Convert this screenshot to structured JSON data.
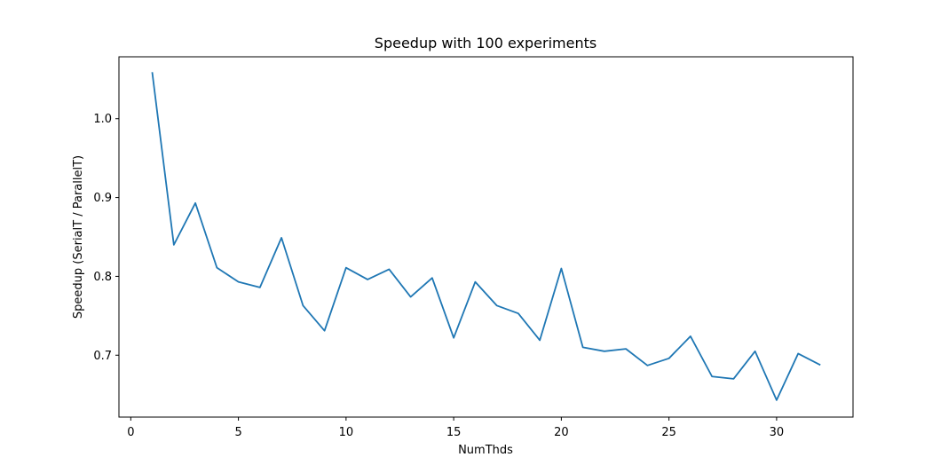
{
  "chart_data": {
    "type": "line",
    "title": "Speedup with 100 experiments",
    "xlabel": "NumThds",
    "ylabel": "Speedup (SerialT / ParallelT)",
    "xlim": [
      -0.55,
      33.55
    ],
    "ylim": [
      0.6215,
      1.0785
    ],
    "xticks": [
      0,
      5,
      10,
      15,
      20,
      25,
      30
    ],
    "yticks": [
      0.7,
      0.8,
      0.9,
      1.0
    ],
    "grid": false,
    "legend": "none",
    "series": [
      {
        "color": "#1f77b4",
        "x": [
          1,
          2,
          3,
          4,
          5,
          6,
          7,
          8,
          9,
          10,
          11,
          12,
          13,
          14,
          15,
          16,
          17,
          18,
          19,
          20,
          21,
          22,
          23,
          24,
          25,
          26,
          27,
          28,
          29,
          30,
          31,
          32
        ],
        "y": [
          1.058,
          0.84,
          0.893,
          0.811,
          0.793,
          0.786,
          0.849,
          0.763,
          0.731,
          0.811,
          0.796,
          0.809,
          0.774,
          0.798,
          0.722,
          0.793,
          0.763,
          0.753,
          0.719,
          0.81,
          0.71,
          0.705,
          0.708,
          0.687,
          0.696,
          0.724,
          0.673,
          0.67,
          0.705,
          0.643,
          0.702,
          0.688
        ]
      }
    ]
  }
}
